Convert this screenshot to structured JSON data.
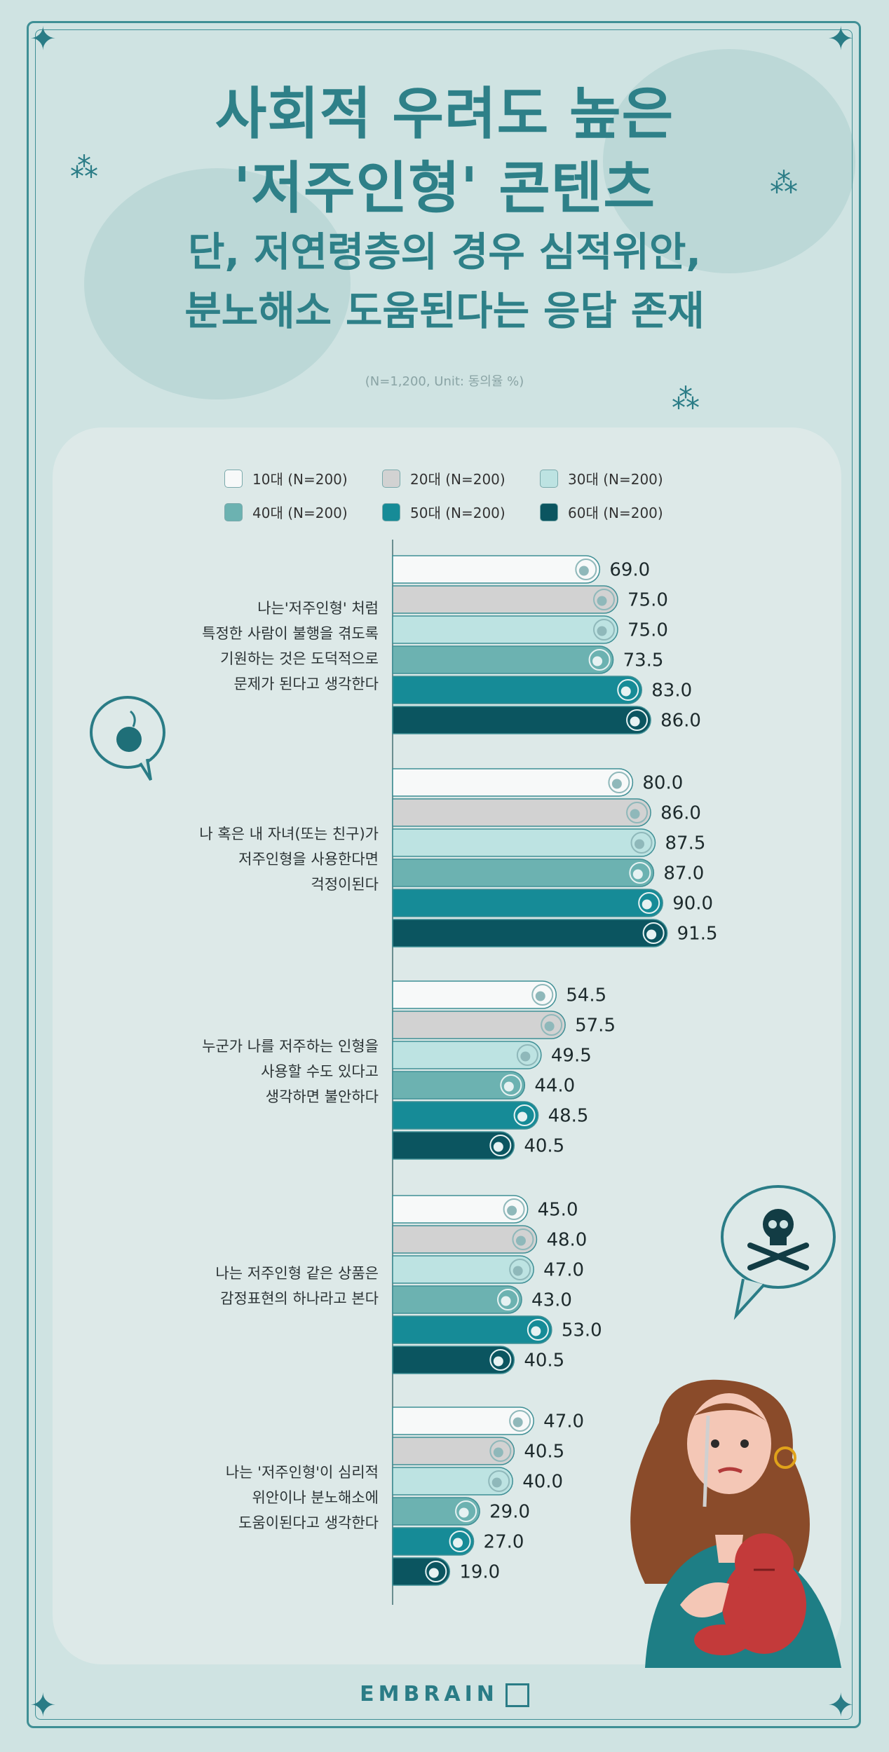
{
  "title_lines": [
    "사회적 우려도 높은",
    "'저주인형' 콘텐츠"
  ],
  "subtitle_lines": [
    "단, 저연령층의 경우 심적위안,",
    "분노해소 도움된다는 응답 존재"
  ],
  "note": "(N=1,200, Unit: 동의율 %)",
  "brand": "EMBRAIN",
  "colors": {
    "background": "#cfe3e2",
    "panel": "#dde9e8",
    "accent": "#2a7c86",
    "series": [
      "#f7f9f9",
      "#d2d2d2",
      "#bde3e2",
      "#6cb2b1",
      "#168b97",
      "#0b5560"
    ]
  },
  "icons": [
    "star-icon",
    "sparkle-icon",
    "bomb-speech-bubble-icon",
    "skull-crossbones-speech-bubble-icon",
    "woman-with-voodoo-doll-illustration"
  ],
  "chart_data": {
    "type": "bar",
    "orientation": "horizontal",
    "categories": [
      [
        "나는'저주인형' 처럼",
        "특정한 사람이 불행을 겪도록",
        "기원하는 것은 도덕적으로",
        "문제가 된다고 생각한다"
      ],
      [
        "나 혹은 내 자녀(또는 친구)가",
        "저주인형을 사용한다면",
        "걱정이된다"
      ],
      [
        "누군가 나를 저주하는 인형을",
        "사용할 수도 있다고",
        "생각하면 불안하다"
      ],
      [
        "나는 저주인형 같은 상품은",
        "감정표현의 하나라고 본다"
      ],
      [
        "나는 '저주인형'이 심리적",
        "위안이나 분노해소에",
        "도움이된다고 생각한다"
      ]
    ],
    "series": [
      {
        "name": "10대 (N=200)",
        "values": [
          69.0,
          80.0,
          54.5,
          45.0,
          47.0
        ]
      },
      {
        "name": "20대 (N=200)",
        "values": [
          75.0,
          86.0,
          57.5,
          48.0,
          40.5
        ]
      },
      {
        "name": "30대 (N=200)",
        "values": [
          75.0,
          87.5,
          49.5,
          47.0,
          40.0
        ]
      },
      {
        "name": "40대 (N=200)",
        "values": [
          73.5,
          87.0,
          44.0,
          43.0,
          29.0
        ]
      },
      {
        "name": "50대 (N=200)",
        "values": [
          83.0,
          90.0,
          48.5,
          53.0,
          27.0
        ]
      },
      {
        "name": "60대 (N=200)",
        "values": [
          86.0,
          91.5,
          40.5,
          40.5,
          19.0
        ]
      }
    ],
    "value_labels": [
      [
        "69.0",
        "80.0",
        "54.5",
        "45.0",
        "47.0"
      ],
      [
        "75.0",
        "86.0",
        "57.5",
        "48.0",
        "40.5"
      ],
      [
        "75.0",
        "87.5",
        "49.5",
        "47.0",
        "40.0"
      ],
      [
        "73.5",
        "87.0",
        "44.0",
        "43.0",
        "29.0"
      ],
      [
        "83.0",
        "90.0",
        "48.5",
        "53.0",
        "27.0"
      ],
      [
        "86.0",
        "91.5",
        "40.5",
        "40.5",
        "19.0"
      ]
    ],
    "legend_position": "top",
    "xlim": [
      0,
      100
    ],
    "grid": false
  }
}
